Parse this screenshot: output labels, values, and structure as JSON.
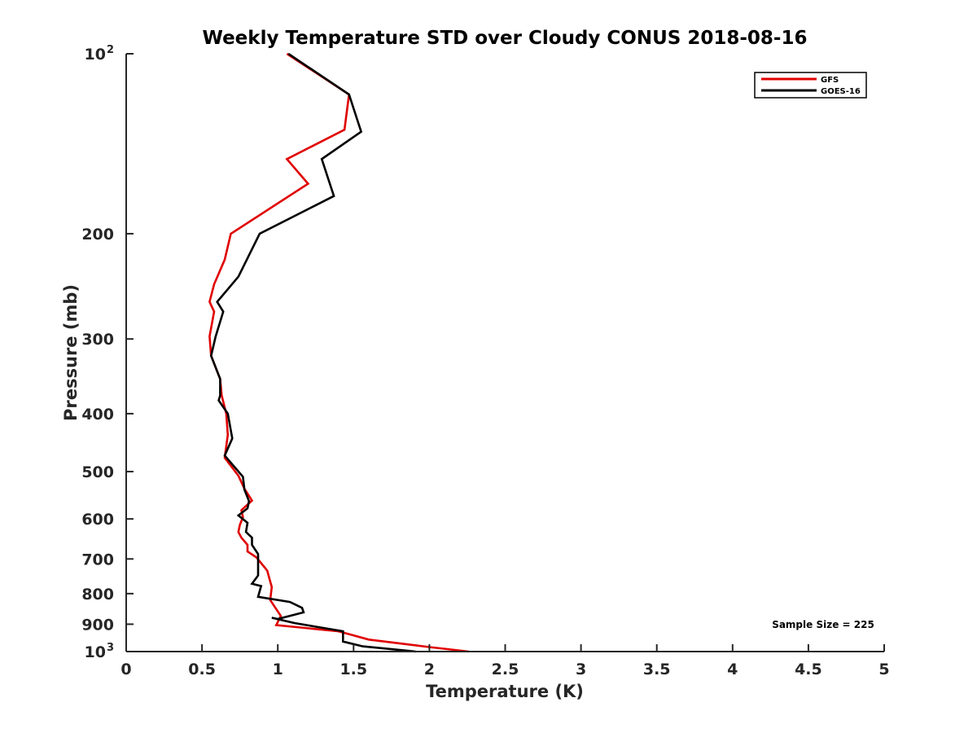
{
  "chart_data": {
    "type": "line",
    "title": "Weekly Temperature STD over Cloudy CONUS 2018-08-16",
    "xlabel": "Temperature (K)",
    "ylabel": "Pressure (mb)",
    "xlim": [
      0,
      5
    ],
    "ylim": [
      100,
      1000
    ],
    "y_scale": "log",
    "y_reversed": true,
    "grid": false,
    "x_ticks": [
      0,
      0.5,
      1,
      1.5,
      2,
      2.5,
      3,
      3.5,
      4,
      4.5,
      5
    ],
    "x_tick_labels": [
      "0",
      "0.5",
      "1",
      "1.5",
      "2",
      "2.5",
      "3",
      "3.5",
      "4",
      "4.5",
      "5"
    ],
    "y_ticks": [
      {
        "value": 100,
        "base": "10",
        "exp": "2"
      },
      {
        "value": 200,
        "label": "200"
      },
      {
        "value": 300,
        "label": "300"
      },
      {
        "value": 400,
        "label": "400"
      },
      {
        "value": 500,
        "label": "500"
      },
      {
        "value": 600,
        "label": "600"
      },
      {
        "value": 700,
        "label": "700"
      },
      {
        "value": 800,
        "label": "800"
      },
      {
        "value": 900,
        "label": "900"
      },
      {
        "value": 1000,
        "base": "10",
        "exp": "3"
      }
    ],
    "legend": {
      "placement": "top-right",
      "entries": [
        {
          "name": "GFS",
          "color": "#e00000"
        },
        {
          "name": "GOES-16",
          "color": "#000000"
        }
      ]
    },
    "annotation": "Sample Size = 225",
    "series": [
      {
        "name": "GFS",
        "color": "#e00000",
        "points": [
          [
            1.06,
            100
          ],
          [
            1.47,
            117
          ],
          [
            1.44,
            134
          ],
          [
            1.06,
            150
          ],
          [
            1.2,
            165
          ],
          [
            0.69,
            200
          ],
          [
            0.65,
            221
          ],
          [
            0.58,
            243
          ],
          [
            0.55,
            260
          ],
          [
            0.58,
            270
          ],
          [
            0.55,
            297
          ],
          [
            0.56,
            320
          ],
          [
            0.62,
            350
          ],
          [
            0.63,
            373
          ],
          [
            0.66,
            400
          ],
          [
            0.67,
            434
          ],
          [
            0.65,
            474
          ],
          [
            0.74,
            508
          ],
          [
            0.78,
            534
          ],
          [
            0.83,
            559
          ],
          [
            0.76,
            580
          ],
          [
            0.77,
            596
          ],
          [
            0.75,
            614
          ],
          [
            0.74,
            631
          ],
          [
            0.76,
            645
          ],
          [
            0.8,
            663
          ],
          [
            0.8,
            680
          ],
          [
            0.86,
            696
          ],
          [
            0.93,
            732
          ],
          [
            0.96,
            780
          ],
          [
            0.95,
            820
          ],
          [
            1.02,
            872
          ],
          [
            0.99,
            903
          ],
          [
            1.4,
            925
          ],
          [
            1.47,
            935
          ],
          [
            1.6,
            955
          ],
          [
            2.0,
            983
          ],
          [
            2.26,
            1000
          ]
        ]
      },
      {
        "name": "GOES-16",
        "color": "#000000",
        "points": [
          [
            1.07,
            100
          ],
          [
            1.47,
            117
          ],
          [
            1.55,
            135
          ],
          [
            1.29,
            150
          ],
          [
            1.37,
            173
          ],
          [
            0.88,
            200
          ],
          [
            0.74,
            236
          ],
          [
            0.6,
            260
          ],
          [
            0.64,
            270
          ],
          [
            0.59,
            297
          ],
          [
            0.56,
            320
          ],
          [
            0.62,
            350
          ],
          [
            0.62,
            373
          ],
          [
            0.61,
            380
          ],
          [
            0.67,
            400
          ],
          [
            0.7,
            440
          ],
          [
            0.65,
            470
          ],
          [
            0.77,
            510
          ],
          [
            0.78,
            536
          ],
          [
            0.81,
            560
          ],
          [
            0.8,
            576
          ],
          [
            0.74,
            592
          ],
          [
            0.8,
            609
          ],
          [
            0.79,
            631
          ],
          [
            0.83,
            645
          ],
          [
            0.83,
            663
          ],
          [
            0.87,
            687
          ],
          [
            0.87,
            746
          ],
          [
            0.83,
            770
          ],
          [
            0.89,
            777
          ],
          [
            0.87,
            810
          ],
          [
            1.08,
            826
          ],
          [
            1.16,
            845
          ],
          [
            1.17,
            860
          ],
          [
            1.0,
            882
          ],
          [
            0.96,
            878
          ],
          [
            1.11,
            896
          ],
          [
            1.43,
            925
          ],
          [
            1.43,
            962
          ],
          [
            1.56,
            980
          ],
          [
            1.91,
            1000
          ]
        ]
      }
    ]
  }
}
